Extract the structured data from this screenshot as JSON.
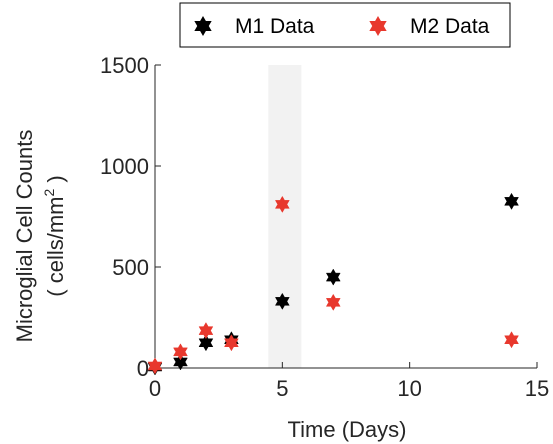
{
  "chart_data": {
    "type": "scatter",
    "xlabel": "Time (Days)",
    "ylabel_line1": "Microglial Cell Counts",
    "ylabel_line2_prefix": "( cells/mm",
    "ylabel_line2_sup": "2",
    "ylabel_line2_suffix": " )",
    "xlim": [
      0,
      15
    ],
    "ylim": [
      0,
      1500
    ],
    "xticks": [
      "0",
      "5",
      "10",
      "15"
    ],
    "yticks": [
      "0",
      "500",
      "1000",
      "1500"
    ],
    "xtick_values": [
      0,
      5,
      10,
      15
    ],
    "ytick_values": [
      0,
      500,
      1000,
      1500
    ],
    "shaded_x_range": [
      4.45,
      5.75
    ],
    "grid": false,
    "legend_position": "top",
    "marker": "hexagram",
    "series": [
      {
        "name": "M1 Data",
        "color": "#000000",
        "points": [
          {
            "x": 0,
            "y": 5
          },
          {
            "x": 1,
            "y": 30
          },
          {
            "x": 2,
            "y": 125
          },
          {
            "x": 3,
            "y": 140
          },
          {
            "x": 5,
            "y": 330
          },
          {
            "x": 7,
            "y": 450
          },
          {
            "x": 14,
            "y": 825
          }
        ]
      },
      {
        "name": "M2 Data",
        "color": "#e8382d",
        "points": [
          {
            "x": 0,
            "y": 10
          },
          {
            "x": 1,
            "y": 80
          },
          {
            "x": 2,
            "y": 185
          },
          {
            "x": 3,
            "y": 125
          },
          {
            "x": 5,
            "y": 810
          },
          {
            "x": 7,
            "y": 325
          },
          {
            "x": 14,
            "y": 140
          }
        ]
      }
    ]
  }
}
